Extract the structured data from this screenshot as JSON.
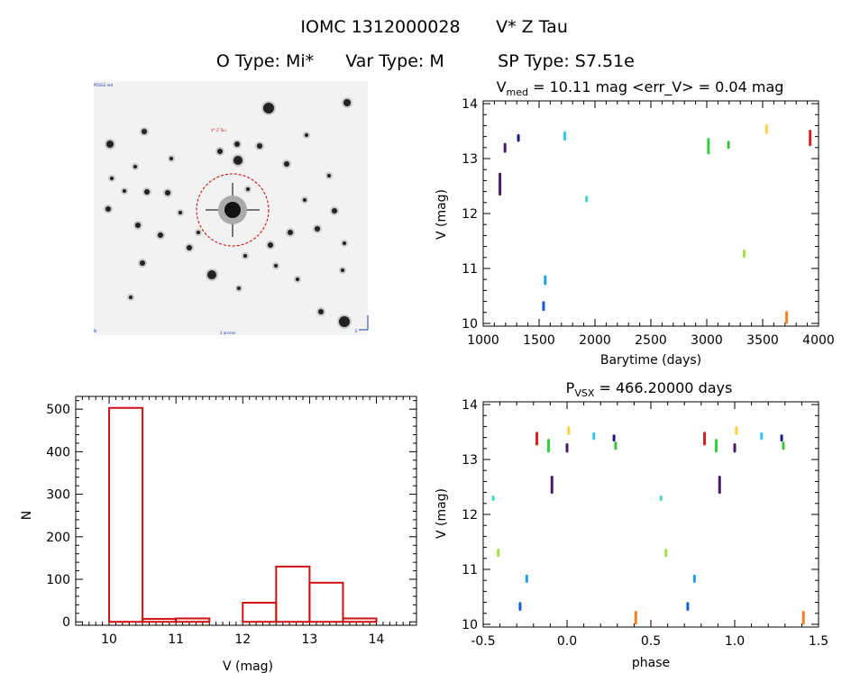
{
  "header": {
    "title_id": "IOMC 1312000028",
    "title_star": "V* Z Tau",
    "otype": "O Type: Mi*",
    "vartype": "Var Type: M",
    "sptype": "SP Type: S7.51e"
  },
  "image_panel": {
    "label_top_left": "POSS2 red",
    "label_target": "V* Z Tau",
    "label_bottom_left": "N",
    "label_bottom_center": "2 arcmin",
    "label_bottom_right": "E"
  },
  "colors": {
    "hist": "#d01010",
    "circle": "#cc0000"
  },
  "chart_data": [
    {
      "id": "lightcurve",
      "type": "scatter",
      "title_main": "V",
      "title_sub": "med",
      "title_rest": " = 10.11 mag <err_V> = 0.04 mag",
      "xlabel": "Barytime (days)",
      "ylabel": "V (mag)",
      "xlim": [
        1000,
        4000
      ],
      "ylim": [
        14.05,
        9.95
      ],
      "xticks": [
        1000,
        1500,
        2000,
        2500,
        3000,
        3500,
        4000
      ],
      "yticks": [
        10,
        11,
        12,
        13,
        14
      ],
      "groups": [
        {
          "x": 1150,
          "y0": 12.35,
          "y1": 12.72,
          "color": "#4a1a6a"
        },
        {
          "x": 1195,
          "y0": 13.13,
          "y1": 13.26,
          "color": "#4a1a6a"
        },
        {
          "x": 1315,
          "y0": 13.33,
          "y1": 13.42,
          "color": "#1a1a80"
        },
        {
          "x": 1540,
          "y0": 10.25,
          "y1": 10.38,
          "color": "#1060d0"
        },
        {
          "x": 1555,
          "y0": 10.72,
          "y1": 10.85,
          "color": "#20a0e0"
        },
        {
          "x": 1730,
          "y0": 13.35,
          "y1": 13.47,
          "color": "#30c8e8"
        },
        {
          "x": 1925,
          "y0": 12.23,
          "y1": 12.3,
          "color": "#40d8c0"
        },
        {
          "x": 3015,
          "y0": 13.1,
          "y1": 13.35,
          "color": "#30d040"
        },
        {
          "x": 3195,
          "y0": 13.2,
          "y1": 13.3,
          "color": "#40c040"
        },
        {
          "x": 3335,
          "y0": 11.22,
          "y1": 11.32,
          "color": "#a0e040"
        },
        {
          "x": 3535,
          "y0": 13.47,
          "y1": 13.6,
          "color": "#ffd040"
        },
        {
          "x": 3715,
          "y0": 10.02,
          "y1": 10.2,
          "color": "#f08020"
        },
        {
          "x": 3925,
          "y0": 13.25,
          "y1": 13.5,
          "color": "#d82020"
        }
      ]
    },
    {
      "id": "histogram",
      "type": "bar",
      "title": "",
      "xlabel": "V (mag)",
      "ylabel": "N",
      "xlim": [
        9.5,
        14.6
      ],
      "ylim": [
        -8,
        530
      ],
      "xticks": [
        10,
        11,
        12,
        13,
        14
      ],
      "yticks": [
        0,
        100,
        200,
        300,
        400,
        500
      ],
      "bin_edges": [
        10,
        10.5,
        11,
        11.5,
        12,
        12.5,
        13,
        13.5,
        14
      ],
      "values": [
        503,
        7,
        8,
        0,
        45,
        130,
        92,
        8
      ]
    },
    {
      "id": "phased",
      "type": "scatter",
      "title_main": "P",
      "title_sub": "VSX",
      "title_rest": " = 466.20000 days",
      "xlabel": "phase",
      "ylabel": "V (mag)",
      "xlim": [
        -0.5,
        1.5
      ],
      "ylim": [
        14.05,
        9.95
      ],
      "xticks": [
        -0.5,
        0.0,
        0.5,
        1.0,
        1.5
      ],
      "yticks": [
        10,
        11,
        12,
        13,
        14
      ],
      "groups": [
        {
          "x": -0.44,
          "y0": 12.27,
          "y1": 12.32,
          "color": "#40d8c0"
        },
        {
          "x": -0.41,
          "y0": 11.25,
          "y1": 11.35,
          "color": "#a0e040"
        },
        {
          "x": -0.28,
          "y0": 10.27,
          "y1": 10.38,
          "color": "#1060d0"
        },
        {
          "x": -0.24,
          "y0": 10.78,
          "y1": 10.88,
          "color": "#20a0e0"
        },
        {
          "x": -0.18,
          "y0": 13.28,
          "y1": 13.48,
          "color": "#d82020"
        },
        {
          "x": -0.11,
          "y0": 13.15,
          "y1": 13.35,
          "color": "#30d040"
        },
        {
          "x": -0.09,
          "y0": 12.4,
          "y1": 12.68,
          "color": "#4a1a6a"
        },
        {
          "x": 0.0,
          "y0": 13.15,
          "y1": 13.27,
          "color": "#4a1a6a"
        },
        {
          "x": 0.01,
          "y0": 13.47,
          "y1": 13.58,
          "color": "#ffd040"
        },
        {
          "x": 0.16,
          "y0": 13.38,
          "y1": 13.47,
          "color": "#30c8e8"
        },
        {
          "x": 0.28,
          "y0": 13.35,
          "y1": 13.43,
          "color": "#1a1a80"
        },
        {
          "x": 0.29,
          "y0": 13.2,
          "y1": 13.3,
          "color": "#40c040"
        },
        {
          "x": 0.41,
          "y0": 10.02,
          "y1": 10.22,
          "color": "#f08020"
        },
        {
          "x": 0.56,
          "y0": 12.27,
          "y1": 12.32,
          "color": "#40d8c0"
        },
        {
          "x": 0.59,
          "y0": 11.25,
          "y1": 11.35,
          "color": "#a0e040"
        },
        {
          "x": 0.72,
          "y0": 10.27,
          "y1": 10.38,
          "color": "#1060d0"
        },
        {
          "x": 0.76,
          "y0": 10.78,
          "y1": 10.88,
          "color": "#20a0e0"
        },
        {
          "x": 0.82,
          "y0": 13.28,
          "y1": 13.48,
          "color": "#d82020"
        },
        {
          "x": 0.89,
          "y0": 13.15,
          "y1": 13.35,
          "color": "#30d040"
        },
        {
          "x": 0.91,
          "y0": 12.4,
          "y1": 12.68,
          "color": "#4a1a6a"
        },
        {
          "x": 1.0,
          "y0": 13.15,
          "y1": 13.27,
          "color": "#4a1a6a"
        },
        {
          "x": 1.01,
          "y0": 13.47,
          "y1": 13.58,
          "color": "#ffd040"
        },
        {
          "x": 1.16,
          "y0": 13.38,
          "y1": 13.47,
          "color": "#30c8e8"
        },
        {
          "x": 1.28,
          "y0": 13.35,
          "y1": 13.43,
          "color": "#1a1a80"
        },
        {
          "x": 1.29,
          "y0": 13.2,
          "y1": 13.3,
          "color": "#40c040"
        },
        {
          "x": 1.41,
          "y0": 10.02,
          "y1": 10.22,
          "color": "#f08020"
        }
      ]
    }
  ]
}
